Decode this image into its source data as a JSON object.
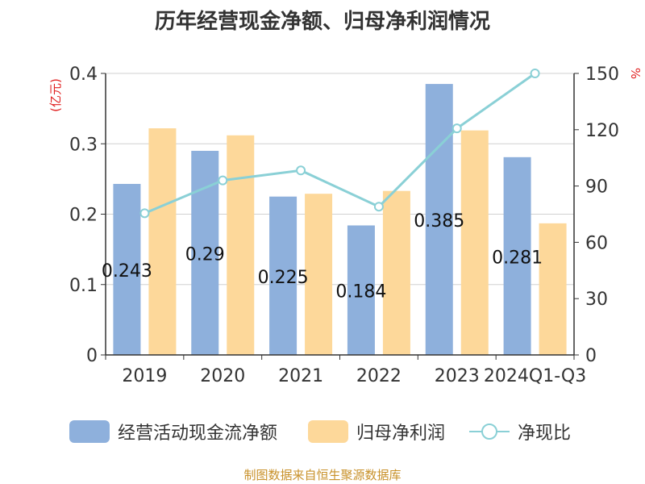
{
  "chart_title": "历年经营现金净额、归母净利润情况",
  "source_note": "制图数据来自恒生聚源数据库",
  "chart_data": {
    "type": "bar",
    "title": "历年经营现金净额、归母净利润情况",
    "categories": [
      "2019",
      "2020",
      "2021",
      "2022",
      "2023",
      "2024Q1-Q3"
    ],
    "series": [
      {
        "name": "经营活动现金流净额",
        "type": "bar",
        "axis": "left",
        "values": [
          0.243,
          0.29,
          0.225,
          0.184,
          0.385,
          0.281
        ],
        "color": "#8eb0dc"
      },
      {
        "name": "归母净利润",
        "type": "bar",
        "axis": "left",
        "values": [
          0.322,
          0.312,
          0.229,
          0.233,
          0.319,
          0.187
        ],
        "color": "#fdd89a"
      },
      {
        "name": "净现比",
        "type": "line",
        "axis": "right",
        "values": [
          75.5,
          93,
          98.3,
          79,
          120.7,
          150
        ],
        "color": "#8ad0d6"
      }
    ],
    "data_labels": [
      "0.243",
      "0.29",
      "0.225",
      "0.184",
      "0.385",
      "0.281"
    ],
    "y_left": {
      "label": "(亿元)",
      "ticks": [
        "0",
        "0.1",
        "0.2",
        "0.3",
        "0.4"
      ],
      "lim": [
        0,
        0.4
      ]
    },
    "y_right": {
      "label": "%",
      "ticks": [
        "0",
        "30",
        "60",
        "90",
        "120",
        "150"
      ],
      "lim": [
        0,
        150
      ]
    },
    "grid": true,
    "legend": "bottom",
    "colors": {
      "axis": "#333333",
      "grid": "#d0d0d0",
      "unit_label": "#e02020"
    }
  }
}
